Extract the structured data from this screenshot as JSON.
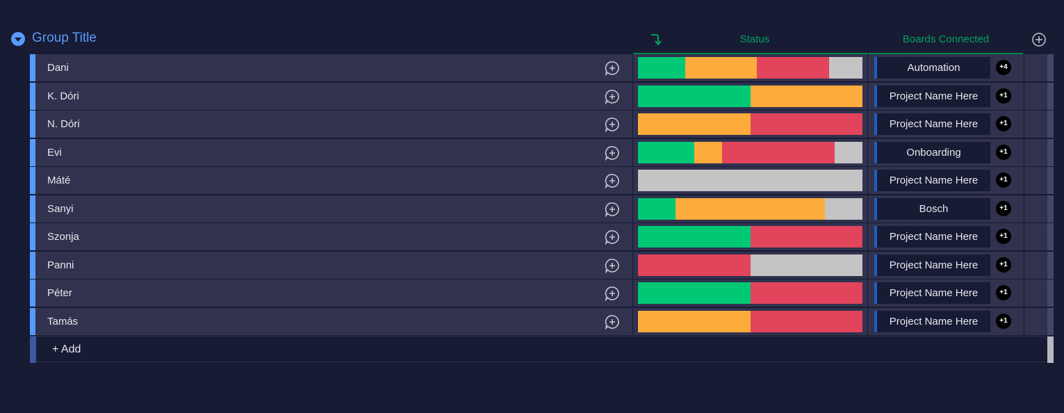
{
  "group": {
    "title": "Group Title",
    "accent_color": "#579bfc"
  },
  "columns": {
    "status_label": "Status",
    "boards_label": "Boards Connected"
  },
  "status_colors": {
    "done": "#00c875",
    "working": "#fdab3d",
    "stuck": "#e2445c",
    "empty": "#c4c4c4"
  },
  "rows": [
    {
      "name": "Dani",
      "status": [
        [
          "done",
          0.21
        ],
        [
          "working",
          0.32
        ],
        [
          "stuck",
          0.32
        ],
        [
          "empty",
          0.15
        ]
      ],
      "board": "Automation",
      "count": "+4"
    },
    {
      "name": "K. Dóri",
      "status": [
        [
          "done",
          0.5
        ],
        [
          "working",
          0.5
        ]
      ],
      "board": "Project Name Here",
      "count": "+1"
    },
    {
      "name": "N. Dóri",
      "status": [
        [
          "working",
          0.5
        ],
        [
          "stuck",
          0.5
        ]
      ],
      "board": "Project Name Here",
      "count": "+1"
    },
    {
      "name": "Evi",
      "status": [
        [
          "done",
          0.25
        ],
        [
          "working",
          0.125
        ],
        [
          "stuck",
          0.5
        ],
        [
          "empty",
          0.125
        ]
      ],
      "board": "Onboarding",
      "count": "+1"
    },
    {
      "name": "Máté",
      "status": [
        [
          "empty",
          1.0
        ]
      ],
      "board": "Project Name Here",
      "count": "+1"
    },
    {
      "name": "Sanyi",
      "status": [
        [
          "done",
          0.167
        ],
        [
          "working",
          0.667
        ],
        [
          "empty",
          0.166
        ]
      ],
      "board": "Bosch",
      "count": "+1"
    },
    {
      "name": "Szonja",
      "status": [
        [
          "done",
          0.5
        ],
        [
          "stuck",
          0.5
        ]
      ],
      "board": "Project Name Here",
      "count": "+1"
    },
    {
      "name": "Panni",
      "status": [
        [
          "stuck",
          0.5
        ],
        [
          "empty",
          0.5
        ]
      ],
      "board": "Project Name Here",
      "count": "+1"
    },
    {
      "name": "Péter",
      "status": [
        [
          "done",
          0.5
        ],
        [
          "stuck",
          0.5
        ]
      ],
      "board": "Project Name Here",
      "count": "+1"
    },
    {
      "name": "Tamás",
      "status": [
        [
          "working",
          0.5
        ],
        [
          "stuck",
          0.5
        ]
      ],
      "board": "Project Name Here",
      "count": "+1"
    }
  ],
  "add_row": {
    "label": "+ Add"
  },
  "icons": {
    "collapse": "chevron-down-icon",
    "sort": "sort-arrow-icon",
    "add_column": "plus-circle-icon",
    "add_update": "chat-plus-icon"
  }
}
